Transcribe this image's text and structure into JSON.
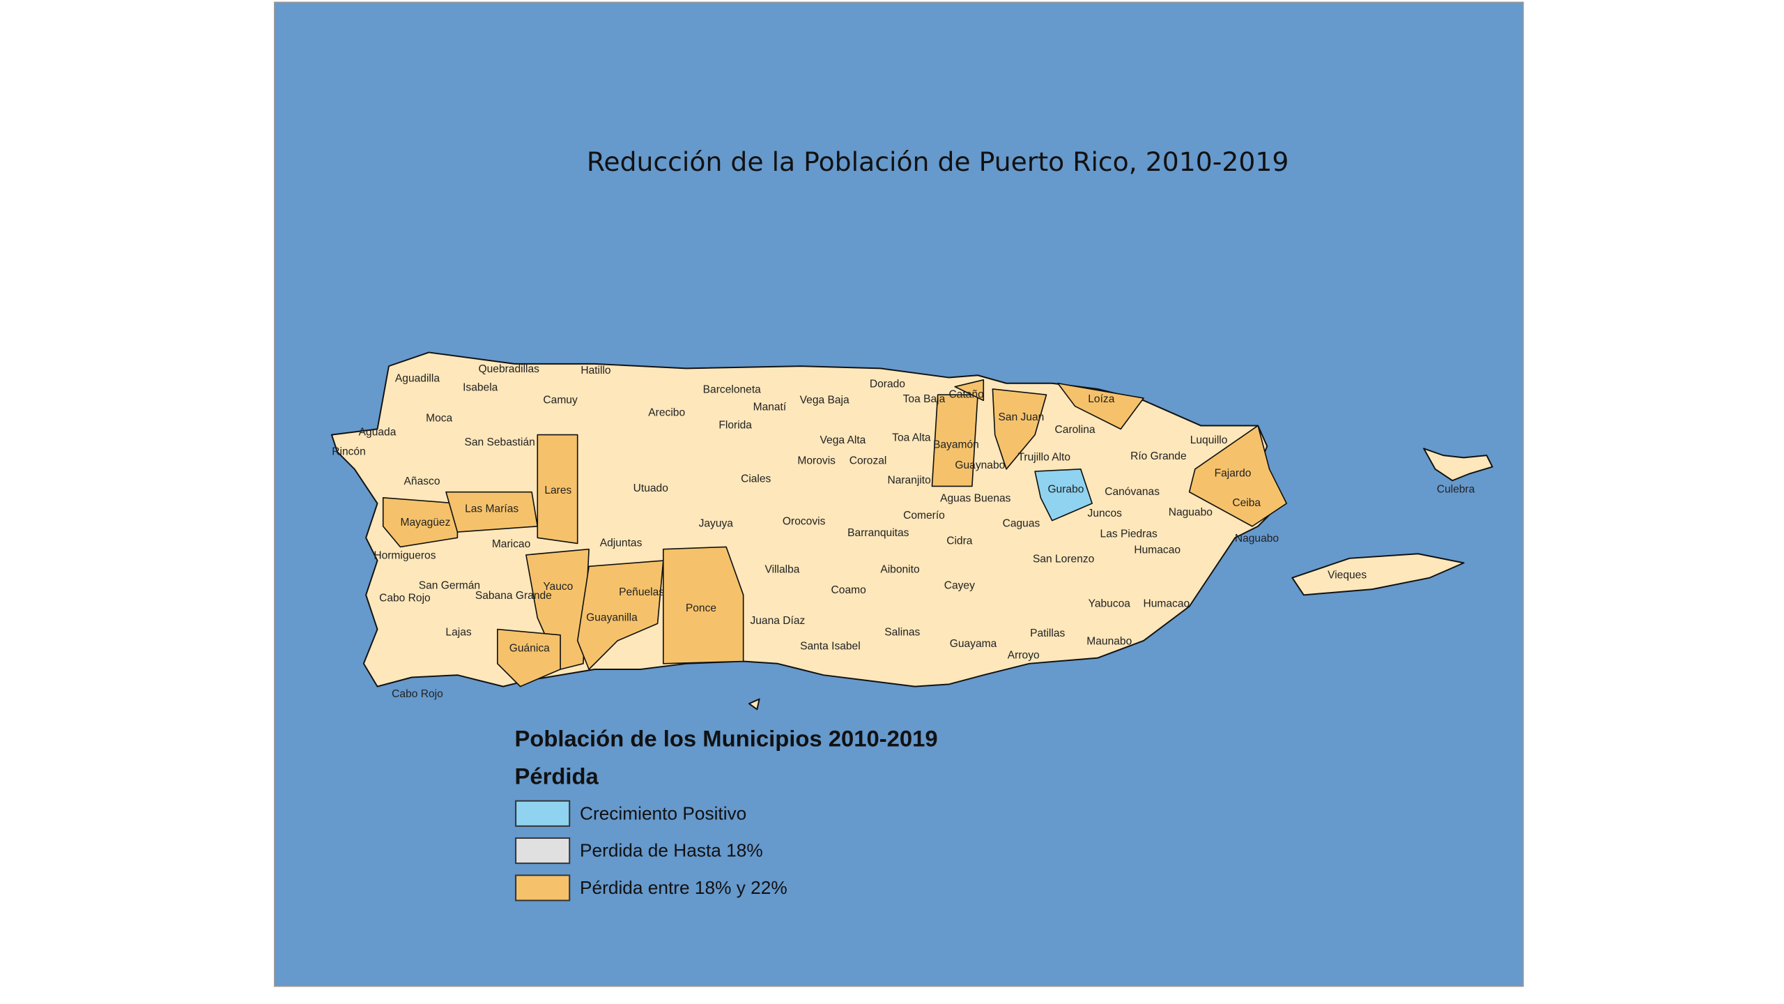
{
  "title": "Reducción de la Población de Puerto Rico, 2010-2019",
  "map": {
    "land_color": "#fde7bb",
    "sea_color": "#6699cc"
  },
  "municipalities": [
    "Aguadilla",
    "Quebradillas",
    "Hatillo",
    "Isabela",
    "Camuy",
    "Barceloneta",
    "Manatí",
    "Vega Baja",
    "Dorado",
    "Toa Baja",
    "Cataño",
    "Loíza",
    "San Juan",
    "Carolina",
    "Luquillo",
    "Aguada",
    "Moca",
    "Rincón",
    "San Sebastián",
    "Arecibo",
    "Florida",
    "Vega Alta",
    "Toa Alta",
    "Bayamón",
    "Río Grande",
    "Trujillo Alto",
    "Guaynabo",
    "Añasco",
    "Lares",
    "Utuado",
    "Ciales",
    "Morovis",
    "Corozal",
    "Naranjito",
    "Fajardo",
    "Gurabo",
    "Canóvanas",
    "Aguas Buenas",
    "Las Marías",
    "Mayagüez",
    "Ceiba",
    "Naguabo",
    "Juncos",
    "Comerío",
    "Orocovis",
    "Jayuya",
    "Caguas",
    "Barranquitas",
    "Las Piedras",
    "Naguabo",
    "Adjuntas",
    "Maricao",
    "Cidra",
    "Humacao",
    "Hormigueros",
    "Aibonito",
    "San Lorenzo",
    "Villalba",
    "San Germán",
    "Sabana Grande",
    "Yauco",
    "Peñuelas",
    "Cayey",
    "Cabo Rojo",
    "Ponce",
    "Coamo",
    "Yabucoa",
    "Humacao",
    "Guayanilla",
    "Juana Díaz",
    "Lajas",
    "Salinas",
    "Patillas",
    "Santa Isabel",
    "Guayama",
    "Maunabo",
    "Guánica",
    "Arroyo",
    "Cabo Rojo",
    "Vieques",
    "Culebra"
  ],
  "legend": {
    "title": "Población de los Municipios 2010-2019",
    "subtitle": "Pérdida",
    "items": [
      {
        "label": "Crecimiento Positivo",
        "color": "#8fd3f0"
      },
      {
        "label": "Perdida de Hasta 18%",
        "color": "#e0e0e0"
      },
      {
        "label": "Pérdida entre 18% y 22%",
        "color": "#f5c26b"
      }
    ]
  }
}
